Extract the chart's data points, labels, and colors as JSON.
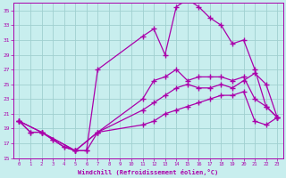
{
  "bg_color": "#c8eeee",
  "grid_color": "#a0d0d0",
  "line_color": "#aa00aa",
  "xlim": [
    -0.5,
    23.5
  ],
  "ylim": [
    15,
    36
  ],
  "xticks": [
    0,
    1,
    2,
    3,
    4,
    5,
    6,
    7,
    8,
    9,
    10,
    11,
    12,
    13,
    14,
    15,
    16,
    17,
    18,
    19,
    20,
    21,
    22,
    23
  ],
  "yticks": [
    15,
    17,
    19,
    21,
    23,
    25,
    27,
    29,
    31,
    33,
    35
  ],
  "xlabel": "Windchill (Refroidissement éolien,°C)",
  "lines": [
    {
      "x": [
        0,
        1,
        2,
        3,
        4,
        5,
        6,
        7,
        11,
        12,
        13,
        14,
        15,
        16,
        17,
        18,
        19,
        20,
        21,
        22,
        23
      ],
      "y": [
        20,
        18.5,
        18.5,
        17.5,
        16.5,
        16,
        16,
        27,
        31.5,
        32.5,
        29.0,
        35.5,
        36.5,
        35.5,
        34.0,
        33.0,
        30.5,
        31.0,
        27.0,
        22.0,
        20.5
      ]
    },
    {
      "x": [
        0,
        1,
        2,
        3,
        4,
        5,
        6,
        7,
        11,
        12,
        13,
        14,
        15,
        16,
        17,
        18,
        19,
        20,
        21,
        22,
        23
      ],
      "y": [
        20,
        18.5,
        18.5,
        17.5,
        16.5,
        16,
        16,
        18.5,
        23.0,
        25.5,
        26.0,
        27.0,
        25.5,
        26.0,
        26.0,
        26.0,
        25.5,
        26.0,
        23.0,
        22.0,
        20.5
      ]
    },
    {
      "x": [
        0,
        2,
        5,
        7,
        11,
        12,
        13,
        14,
        15,
        16,
        17,
        18,
        19,
        20,
        21,
        22,
        23
      ],
      "y": [
        20,
        18.5,
        16,
        18.5,
        21.5,
        22.5,
        23.5,
        24.5,
        25.0,
        24.5,
        24.5,
        25.0,
        24.5,
        25.5,
        26.5,
        25.0,
        20.5
      ]
    },
    {
      "x": [
        0,
        2,
        5,
        7,
        11,
        12,
        13,
        14,
        15,
        16,
        17,
        18,
        19,
        20,
        21,
        22,
        23
      ],
      "y": [
        20,
        18.5,
        16,
        18.5,
        19.5,
        20.0,
        21.0,
        21.5,
        22.0,
        22.5,
        23.0,
        23.5,
        23.5,
        24.0,
        20.0,
        19.5,
        20.5
      ]
    }
  ]
}
